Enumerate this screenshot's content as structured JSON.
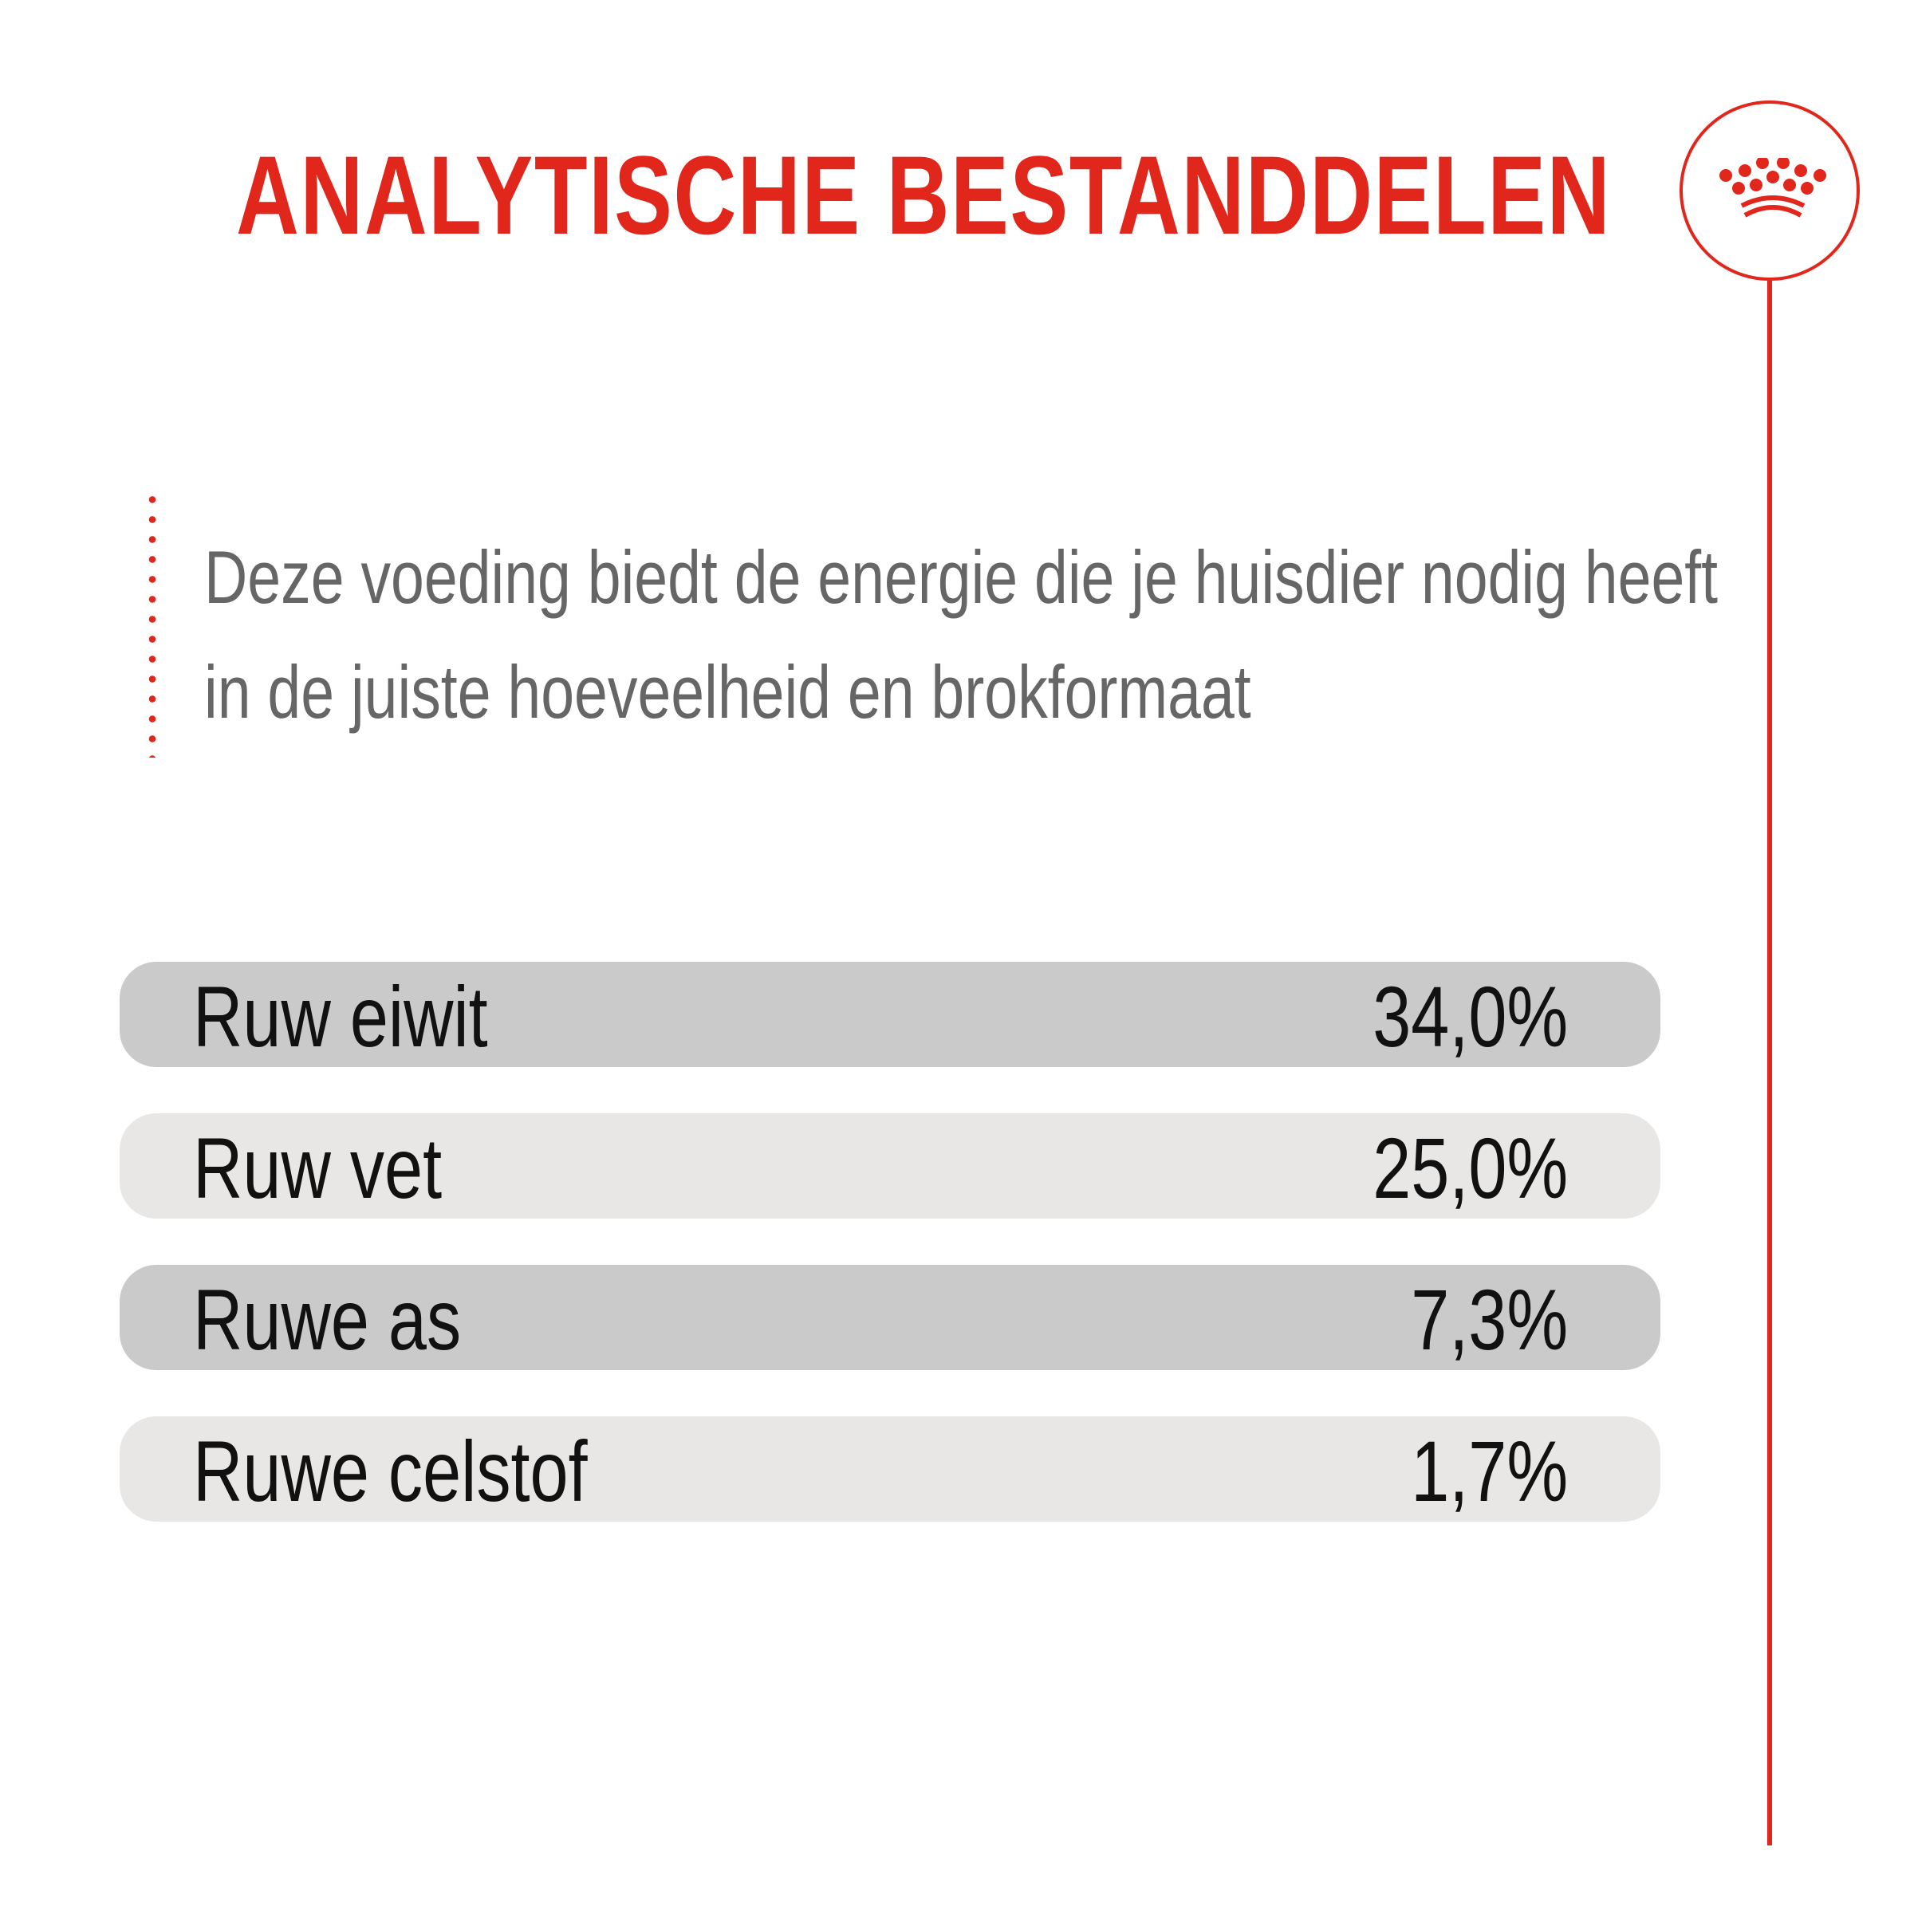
{
  "title": "ANALYTISCHE BESTANDDELEN",
  "logo": {
    "icon": "crown-icon"
  },
  "intro": {
    "line1": "Deze voeding biedt de energie die je huisdier nodig heeft",
    "line2": "in de juiste hoeveelheid en brokformaat"
  },
  "nutrients": [
    {
      "label": "Ruw eiwit",
      "value": "34,0%"
    },
    {
      "label": "Ruw vet",
      "value": "25,0%"
    },
    {
      "label": "Ruwe as",
      "value": "7,3%"
    },
    {
      "label": "Ruwe celstof",
      "value": "1,7%"
    }
  ],
  "colors": {
    "brand_red": "#E1261C",
    "intro_text": "#666666",
    "row_dark": "#CBCACA",
    "row_light": "#E8E7E6",
    "row_text": "#111111"
  }
}
